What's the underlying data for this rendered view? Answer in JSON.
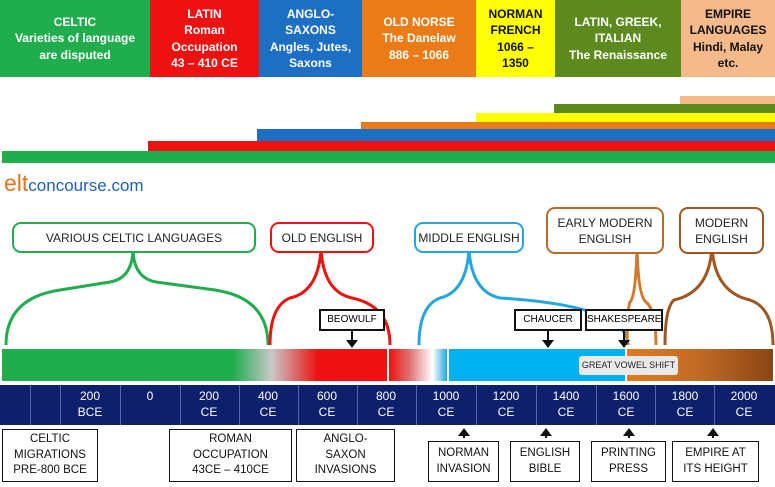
{
  "header": [
    {
      "name": "celtic",
      "lines": [
        "CELTIC",
        "Varieties of language",
        "are disputed"
      ],
      "color": "#1fad4e",
      "text_color": "#ffffff"
    },
    {
      "name": "latin",
      "lines": [
        "LATIN",
        "Roman",
        "Occupation",
        "43 – 410 CE"
      ],
      "color": "#ee1111",
      "text_color": "#ffffff"
    },
    {
      "name": "anglo-saxon",
      "lines": [
        "ANGLO-",
        "SAXONS",
        "Angles, Jutes,",
        "Saxons"
      ],
      "color": "#1d6fc4",
      "text_color": "#ffffff"
    },
    {
      "name": "old-norse",
      "lines": [
        "OLD NORSE",
        "The Danelaw",
        "886 – 1066"
      ],
      "color": "#ea7b16",
      "text_color": "#ffffff"
    },
    {
      "name": "norman-french",
      "lines": [
        "NORMAN",
        "FRENCH",
        "1066 –",
        "1350"
      ],
      "color": "#ffff00",
      "text_color": "#111111"
    },
    {
      "name": "latin-greek-italian",
      "lines": [
        "LATIN, GREEK,",
        "ITALIAN",
        "The Renaissance"
      ],
      "color": "#5c8a1e",
      "text_color": "#ffffff"
    },
    {
      "name": "empire-languages",
      "lines": [
        "EMPIRE",
        "LANGUAGES",
        "Hindi, Malay",
        "etc."
      ],
      "color": "#f5b98a",
      "text_color": "#111111"
    }
  ],
  "logo": {
    "part1": "elt",
    "part2": "concourse.com"
  },
  "periods": [
    {
      "name": "celtic-languages",
      "lines": [
        "VARIOUS CELTIC LANGUAGES"
      ],
      "color": "#1fad4e"
    },
    {
      "name": "old-english",
      "lines": [
        "OLD ENGLISH"
      ],
      "color": "#ee1111"
    },
    {
      "name": "middle-english",
      "lines": [
        "MIDDLE ENGLISH"
      ],
      "color": "#22a6dd"
    },
    {
      "name": "early-modern-english",
      "lines": [
        "EARLY MODERN",
        "ENGLISH"
      ],
      "color": "#b86a2c"
    },
    {
      "name": "modern-english",
      "lines": [
        "MODERN",
        "ENGLISH"
      ],
      "color": "#a0561e"
    }
  ],
  "pointers": {
    "beowulf": "BEOWULF",
    "chaucer": "CHAUCER",
    "shakespeare": "SHAKESPEARE"
  },
  "great_vowel_shift": "GREAT VOWEL SHIFT",
  "axis_ticks": [
    {
      "line1": "200",
      "line2": "BCE"
    },
    {
      "line1": "0",
      "line2": ""
    },
    {
      "line1": "200",
      "line2": "CE"
    },
    {
      "line1": "400",
      "line2": "CE"
    },
    {
      "line1": "600",
      "line2": "CE"
    },
    {
      "line1": "800",
      "line2": "CE"
    },
    {
      "line1": "1000",
      "line2": "CE"
    },
    {
      "line1": "1200",
      "line2": "CE"
    },
    {
      "line1": "1400",
      "line2": "CE"
    },
    {
      "line1": "1600",
      "line2": "CE"
    },
    {
      "line1": "1800",
      "line2": "CE"
    },
    {
      "line1": "2000",
      "line2": "CE"
    }
  ],
  "events": [
    {
      "name": "celtic-migrations",
      "lines": [
        "CELTIC",
        "MIGRATIONS",
        "PRE-800 BCE"
      ]
    },
    {
      "name": "roman-occupation",
      "lines": [
        "ROMAN",
        "OCCUPATION",
        "43CE – 410CE"
      ]
    },
    {
      "name": "anglo-saxon-invasions",
      "lines": [
        "ANGLO-",
        "SAXON",
        "INVASIONS"
      ]
    },
    {
      "name": "norman-invasion",
      "lines": [
        "NORMAN",
        "INVASION"
      ]
    },
    {
      "name": "english-bible",
      "lines": [
        "ENGLISH",
        "BIBLE"
      ]
    },
    {
      "name": "printing-press",
      "lines": [
        "PRINTING",
        "PRESS"
      ]
    },
    {
      "name": "empire-height",
      "lines": [
        "EMPIRE AT",
        "ITS  HEIGHT"
      ]
    }
  ]
}
